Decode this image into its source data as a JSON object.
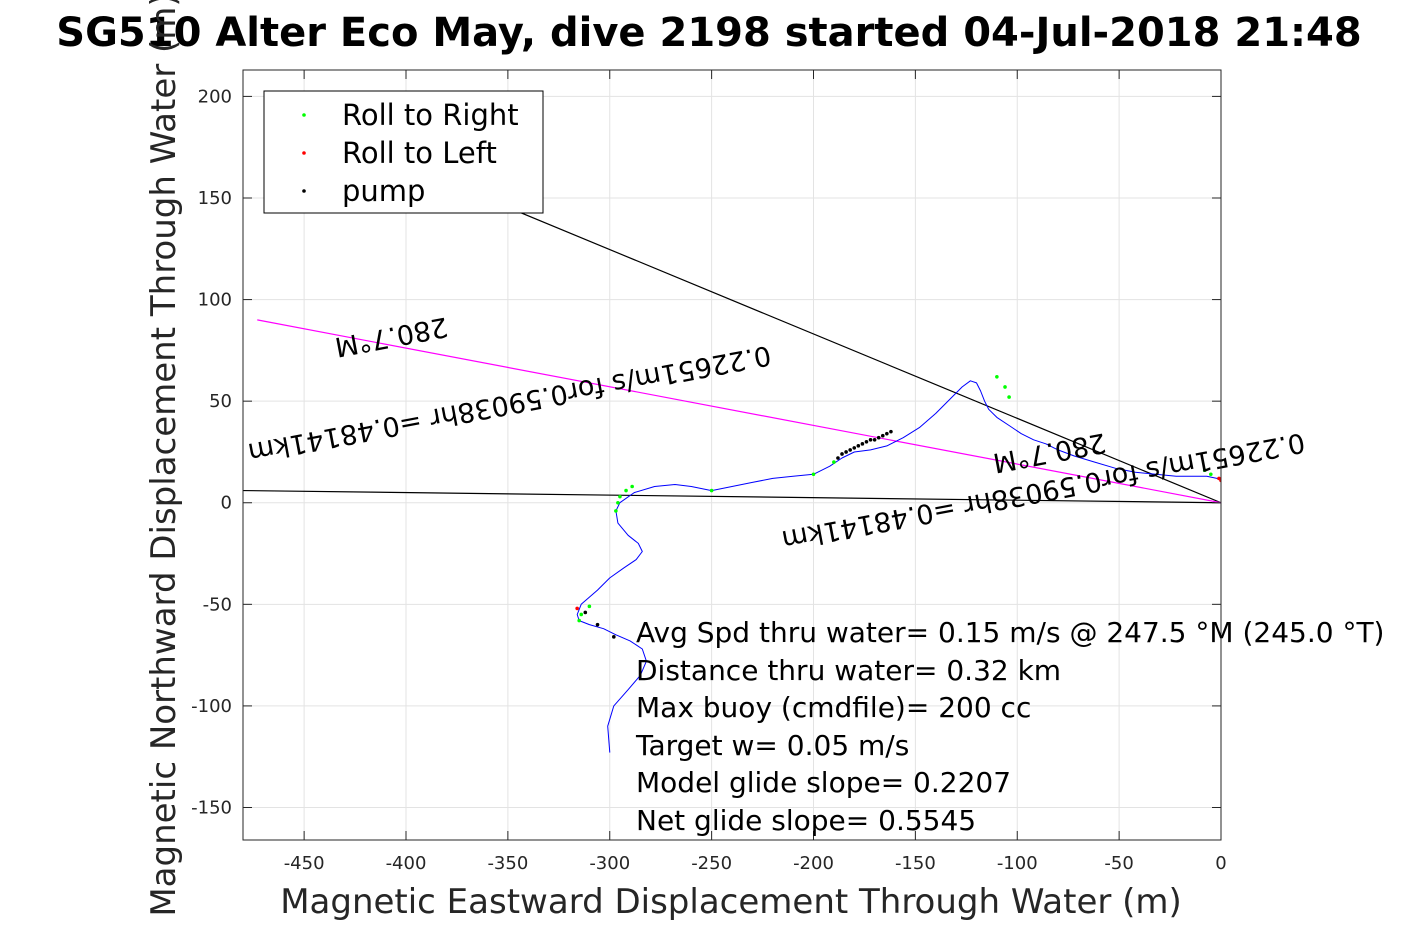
{
  "chart_data": {
    "type": "line",
    "title": "SG510 Alter Eco May, dive 2198 started 04-Jul-2018 21:48",
    "xlabel": "Magnetic Eastward Displacement Through Water (m)",
    "ylabel": "Magnetic Northward Displacement Through Water (m)",
    "xlim": [
      -480,
      0
    ],
    "ylim": [
      -166,
      213
    ],
    "xticks": [
      -450,
      -400,
      -350,
      -300,
      -250,
      -200,
      -150,
      -100,
      -50,
      0
    ],
    "yticks": [
      -150,
      -100,
      -50,
      0,
      50,
      100,
      150,
      200
    ],
    "grid": true,
    "legend_position": "top-left",
    "legend": [
      "Roll to Right",
      "Roll to Left",
      "pump"
    ],
    "series": [
      {
        "name": "track",
        "color": "#0000ff",
        "x": [
          -300,
          -301,
          -298,
          -291,
          -285,
          -282,
          -284,
          -290,
          -297,
          -303,
          -310,
          -315,
          -316,
          -314,
          -306,
          -300,
          -293,
          -287,
          -284,
          -286,
          -291,
          -296,
          -297,
          -295,
          -288,
          -278,
          -268,
          -260,
          -250,
          -240,
          -230,
          -220,
          -210,
          -200,
          -192,
          -186,
          -180,
          -172,
          -164,
          -156,
          -148,
          -140,
          -133,
          -127,
          -123,
          -120,
          -118,
          -116,
          -114,
          -110,
          -104,
          -98,
          -92,
          -86,
          -80,
          -72,
          -62,
          -52,
          -42,
          -32,
          -22,
          -14,
          -7,
          -2,
          0
        ],
        "y": [
          -123,
          -110,
          -100,
          -92,
          -85,
          -78,
          -72,
          -68,
          -65,
          -62,
          -60,
          -58,
          -55,
          -50,
          -43,
          -37,
          -32,
          -28,
          -24,
          -20,
          -16,
          -10,
          -4,
          0,
          5,
          8,
          9,
          8,
          6,
          8,
          10,
          12,
          13,
          14,
          18,
          22,
          25,
          26,
          28,
          32,
          37,
          44,
          51,
          57,
          60,
          59,
          55,
          50,
          46,
          42,
          38,
          34,
          31,
          29,
          26,
          23,
          20,
          17,
          15,
          14,
          13,
          13,
          13,
          12,
          11
        ]
      },
      {
        "name": "Roll to Right",
        "color": "#00ff00",
        "x": [
          -297,
          -296,
          -295,
          -292,
          -289,
          -315,
          -314,
          -310,
          -250,
          -200,
          -190,
          -110,
          -106,
          -104,
          -8,
          -5
        ],
        "y": [
          -4,
          0,
          3,
          6,
          8,
          -58,
          -55,
          -51,
          6,
          14,
          20,
          62,
          57,
          52,
          16,
          14
        ]
      },
      {
        "name": "Roll to Left",
        "color": "#ff0000",
        "x": [
          -316,
          -1,
          0
        ],
        "y": [
          -52,
          12,
          11
        ]
      },
      {
        "name": "pump",
        "color": "#000000",
        "x": [
          -188,
          -186,
          -184,
          -182,
          -180,
          -178,
          -176,
          -174,
          -172,
          -170,
          -168,
          -166,
          -164,
          -162,
          -298,
          -306,
          -312
        ],
        "y": [
          22,
          24,
          25,
          26,
          27,
          28,
          29,
          30,
          31,
          31,
          32,
          33,
          34,
          35,
          -66,
          -60,
          -54
        ]
      }
    ],
    "reference_lines": [
      {
        "color": "#000000",
        "x": [
          -480,
          0
        ],
        "y": [
          6,
          0
        ]
      },
      {
        "color": "#000000",
        "x": [
          -390,
          0
        ],
        "y": [
          162,
          0
        ]
      },
      {
        "color": "#ff00ff",
        "x": [
          -473,
          0
        ],
        "y": [
          90,
          0
        ]
      }
    ],
    "annotations": {
      "heading_label_1": "280.7°M",
      "heading_label_2": "280.7°M",
      "speed_label_1": "0.22651m/s for0.59038hr =0.48141km",
      "speed_label_2": "0.22651m/s for0.59038hr =0.48141km"
    },
    "stats": [
      "Avg Spd thru water=  0.15 m/s @ 247.5 °M (245.0 °T)",
      "Distance thru water=  0.32 km",
      "Max buoy (cmdfile)= 200 cc",
      "Target w= 0.05 m/s",
      "Model glide slope= 0.2207",
      "Net glide slope= 0.5545"
    ]
  }
}
